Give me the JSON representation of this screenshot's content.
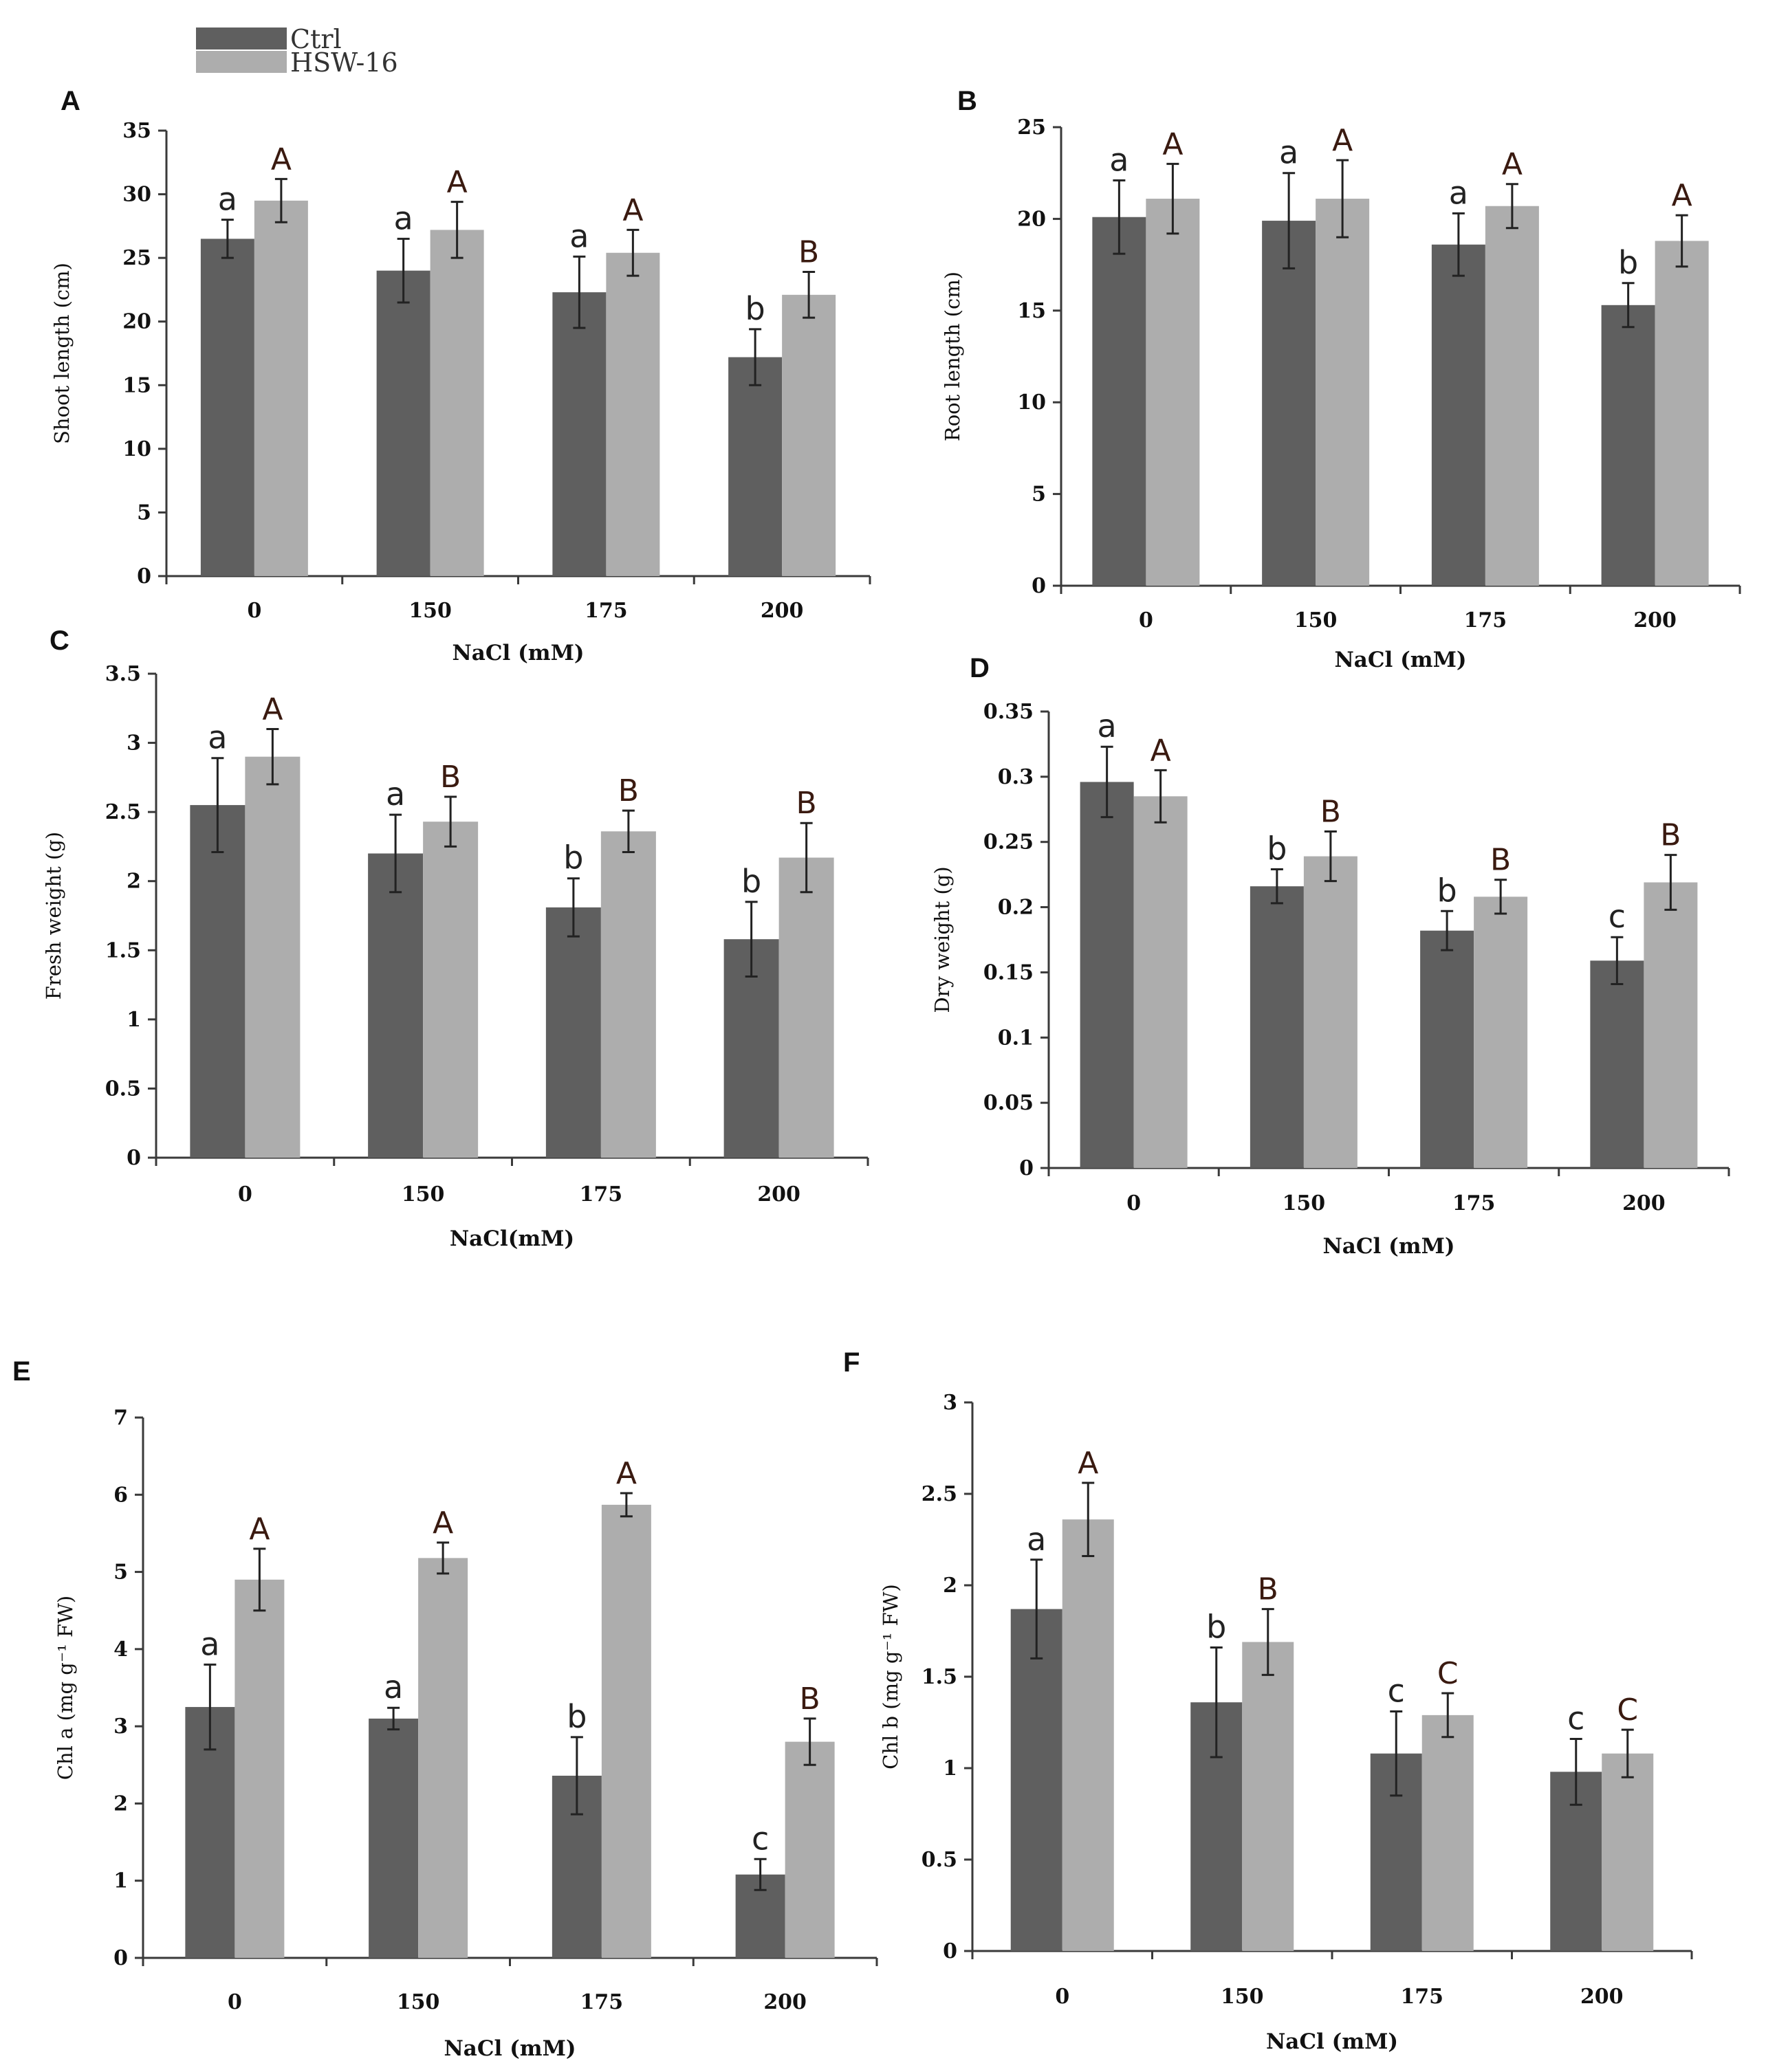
{
  "legend": {
    "items": [
      {
        "name": "Ctrl",
        "color": "#5f5f5f"
      },
      {
        "name": "HSW-16",
        "color": "#adadad"
      }
    ]
  },
  "chart_data": [
    {
      "panel": "A",
      "type": "bar",
      "title": "",
      "xlabel": "NaCl (mM)",
      "ylabel": "Shoot length (cm)",
      "categories": [
        "0",
        "150",
        "175",
        "200"
      ],
      "ylim": [
        0,
        35
      ],
      "yticks": [
        0,
        5,
        10,
        15,
        20,
        25,
        30,
        35
      ],
      "series": [
        {
          "name": "Ctrl",
          "values": [
            26.5,
            24,
            22.3,
            17.2
          ],
          "errors": [
            1.5,
            2.5,
            2.8,
            2.2
          ],
          "letters": [
            "a",
            "a",
            "a",
            "b"
          ]
        },
        {
          "name": "HSW-16",
          "values": [
            29.5,
            27.2,
            25.4,
            22.1
          ],
          "errors": [
            1.7,
            2.2,
            1.8,
            1.8
          ],
          "letters": [
            "A",
            "A",
            "A",
            "B"
          ]
        }
      ]
    },
    {
      "panel": "B",
      "type": "bar",
      "title": "",
      "xlabel": "NaCl (mM)",
      "ylabel": "Root length (cm)",
      "categories": [
        "0",
        "150",
        "175",
        "200"
      ],
      "ylim": [
        0,
        25
      ],
      "yticks": [
        0,
        5,
        10,
        15,
        20,
        25
      ],
      "series": [
        {
          "name": "Ctrl",
          "values": [
            20.1,
            19.9,
            18.6,
            15.3
          ],
          "errors": [
            2.0,
            2.6,
            1.7,
            1.2
          ],
          "letters": [
            "a",
            "a",
            "a",
            "b"
          ]
        },
        {
          "name": "HSW-16",
          "values": [
            21.1,
            21.1,
            20.7,
            18.8
          ],
          "errors": [
            1.9,
            2.1,
            1.2,
            1.4
          ],
          "letters": [
            "A",
            "A",
            "A",
            "A"
          ]
        }
      ]
    },
    {
      "panel": "C",
      "type": "bar",
      "title": "",
      "xlabel": "NaCl(mM)",
      "ylabel": "Fresh weight (g)",
      "categories": [
        "0",
        "150",
        "175",
        "200"
      ],
      "ylim": [
        0,
        3.5
      ],
      "yticks": [
        "0",
        "0.5",
        "1",
        "1.5",
        "2",
        "2.5",
        "3",
        "3.5"
      ],
      "series": [
        {
          "name": "Ctrl",
          "values": [
            2.55,
            2.2,
            1.81,
            1.58
          ],
          "errors": [
            0.34,
            0.28,
            0.21,
            0.27
          ],
          "letters": [
            "a",
            "a",
            "b",
            "b"
          ]
        },
        {
          "name": "HSW-16",
          "values": [
            2.9,
            2.43,
            2.36,
            2.17
          ],
          "errors": [
            0.2,
            0.18,
            0.15,
            0.25
          ],
          "letters": [
            "A",
            "B",
            "B",
            "B"
          ]
        }
      ]
    },
    {
      "panel": "D",
      "type": "bar",
      "title": "",
      "xlabel": "NaCl (mM)",
      "ylabel": "Dry weight (g)",
      "categories": [
        "0",
        "150",
        "175",
        "200"
      ],
      "ylim": [
        0,
        0.35
      ],
      "yticks": [
        "0",
        "0.05",
        "0.1",
        "0.15",
        "0.2",
        "0.25",
        "0.3",
        "0.35"
      ],
      "series": [
        {
          "name": "Ctrl",
          "values": [
            0.296,
            0.216,
            0.182,
            0.159
          ],
          "errors": [
            0.027,
            0.013,
            0.015,
            0.018
          ],
          "letters": [
            "a",
            "b",
            "b",
            "c"
          ]
        },
        {
          "name": "HSW-16",
          "values": [
            0.285,
            0.239,
            0.208,
            0.219
          ],
          "errors": [
            0.02,
            0.019,
            0.013,
            0.021
          ],
          "letters": [
            "A",
            "B",
            "B",
            "B"
          ]
        }
      ]
    },
    {
      "panel": "E",
      "type": "bar",
      "title": "",
      "xlabel": "NaCl (mM)",
      "ylabel": "Chl a (mg g⁻¹ FW)",
      "categories": [
        "0",
        "150",
        "175",
        "200"
      ],
      "ylim": [
        0,
        7
      ],
      "yticks": [
        0,
        1,
        2,
        3,
        4,
        5,
        6,
        7
      ],
      "series": [
        {
          "name": "Ctrl",
          "values": [
            3.25,
            3.1,
            2.36,
            1.08
          ],
          "errors": [
            0.55,
            0.14,
            0.5,
            0.2
          ],
          "letters": [
            "a",
            "a",
            "b",
            "c"
          ]
        },
        {
          "name": "HSW-16",
          "values": [
            4.9,
            5.18,
            5.87,
            2.8
          ],
          "errors": [
            0.4,
            0.2,
            0.15,
            0.3
          ],
          "letters": [
            "A",
            "A",
            "A",
            "B"
          ]
        }
      ]
    },
    {
      "panel": "F",
      "type": "bar",
      "title": "",
      "xlabel": "NaCl (mM)",
      "ylabel": "Chl b (mg g⁻¹ FW)",
      "categories": [
        "0",
        "150",
        "175",
        "200"
      ],
      "ylim": [
        0,
        3
      ],
      "yticks": [
        "0",
        "0.5",
        "1",
        "1.5",
        "2",
        "2.5",
        "3"
      ],
      "series": [
        {
          "name": "Ctrl",
          "values": [
            1.87,
            1.36,
            1.08,
            0.98
          ],
          "errors": [
            0.27,
            0.3,
            0.23,
            0.18
          ],
          "letters": [
            "a",
            "b",
            "c",
            "c"
          ]
        },
        {
          "name": "HSW-16",
          "values": [
            2.36,
            1.69,
            1.29,
            1.08
          ],
          "errors": [
            0.2,
            0.18,
            0.12,
            0.13
          ],
          "letters": [
            "A",
            "B",
            "C",
            "C"
          ]
        }
      ]
    }
  ]
}
